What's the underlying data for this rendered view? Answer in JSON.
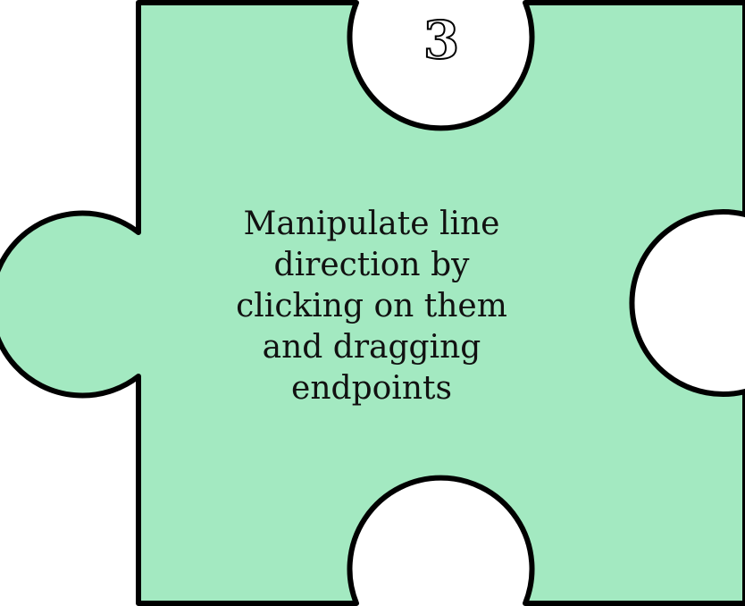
{
  "puzzle_piece": {
    "number": "3",
    "instruction": "Manipulate line\ndirection by\nclicking on them\nand dragging\nendpoints",
    "fill_color": "#a3e9c1",
    "outline_color": "#000000",
    "hole_color": "#ffffff"
  }
}
